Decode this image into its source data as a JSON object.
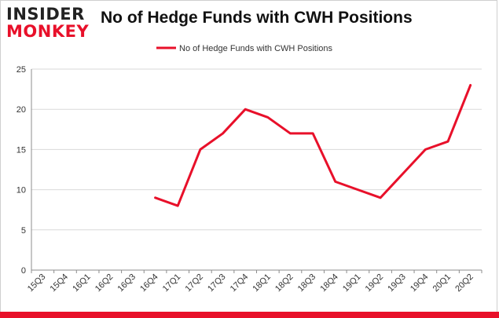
{
  "logo": {
    "line1": "INSIDER",
    "line2": "MONKEY"
  },
  "colors": {
    "accent": "#e8102a",
    "series": "#e8102a",
    "grid": "#d9d9d9"
  },
  "chart_data": {
    "type": "line",
    "title": "No of Hedge Funds with CWH Positions",
    "xlabel": "",
    "ylabel": "",
    "ylim": [
      0,
      25
    ],
    "yticks": [
      0,
      5,
      10,
      15,
      20,
      25
    ],
    "grid": "horizontal",
    "legend": "top-center",
    "categories": [
      "15Q3",
      "15Q4",
      "16Q1",
      "16Q2",
      "16Q3",
      "16Q4",
      "17Q1",
      "17Q2",
      "17Q3",
      "17Q4",
      "18Q1",
      "18Q2",
      "18Q3",
      "18Q4",
      "19Q1",
      "19Q2",
      "19Q3",
      "19Q4",
      "20Q1",
      "20Q2"
    ],
    "series": [
      {
        "name": "No of Hedge Funds with CWH Positions",
        "values": [
          null,
          null,
          null,
          null,
          null,
          9,
          8,
          15,
          17,
          20,
          19,
          17,
          17,
          11,
          10,
          9,
          12,
          15,
          16,
          23
        ]
      }
    ]
  }
}
